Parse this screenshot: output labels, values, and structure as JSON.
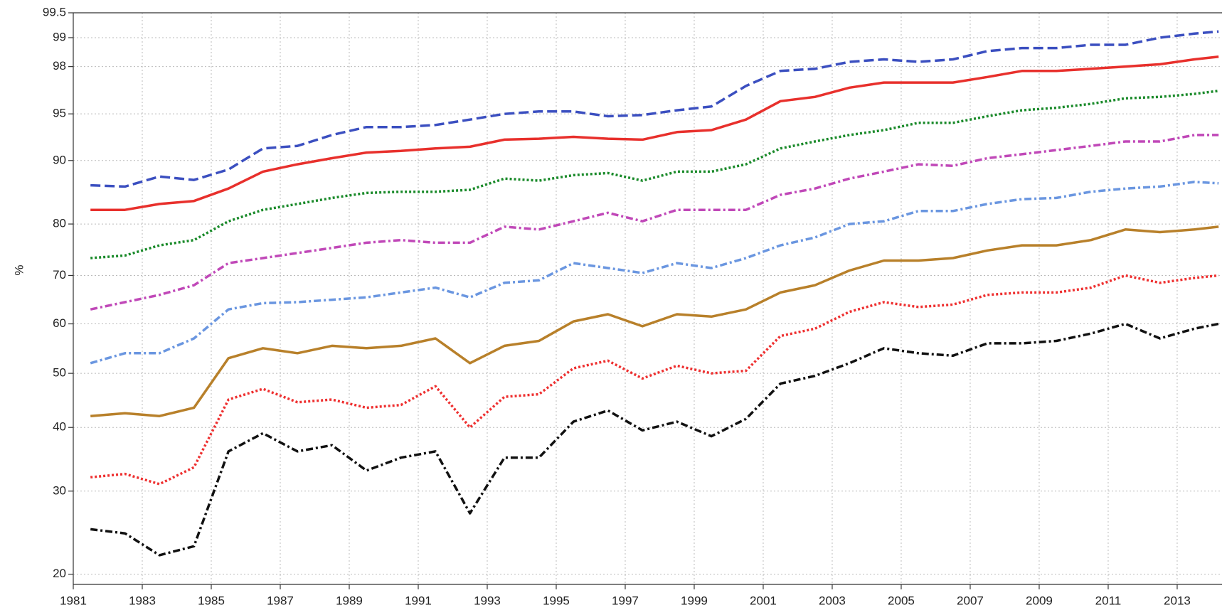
{
  "chart_data": {
    "type": "line",
    "y_label": "%",
    "yscale": "cloglog",
    "grid": true,
    "x": [
      1981.5,
      1982.5,
      1983.5,
      1984.5,
      1985.5,
      1986.5,
      1987.5,
      1988.5,
      1989.5,
      1990.5,
      1991.5,
      1992.5,
      1993.5,
      1994.5,
      1995.5,
      1996.5,
      1997.5,
      1998.5,
      1999.5,
      2000.5,
      2001.5,
      2002.5,
      2003.5,
      2004.5,
      2005.5,
      2006.5,
      2007.5,
      2008.5,
      2009.5,
      2010.5,
      2011.5,
      2012.5,
      2013.5,
      2014.2
    ],
    "xlim": [
      1981,
      2014.3
    ],
    "xticks": [
      1981,
      1983,
      1985,
      1987,
      1989,
      1991,
      1993,
      1995,
      1997,
      1999,
      2001,
      2003,
      2005,
      2007,
      2009,
      2011,
      2013
    ],
    "ylim": [
      19,
      99.5
    ],
    "yticks": [
      20,
      30,
      40,
      50,
      60,
      70,
      80,
      90,
      95,
      98,
      99,
      99.5
    ],
    "series": [
      {
        "color": "#3b4fc0",
        "dash": "dashed",
        "values": [
          86.5,
          86.3,
          87.8,
          87.3,
          88.8,
          91.5,
          91.8,
          93.0,
          93.8,
          93.8,
          94.0,
          94.5,
          95.0,
          95.2,
          95.2,
          94.8,
          94.9,
          95.3,
          95.6,
          97.0,
          97.8,
          97.9,
          98.2,
          98.3,
          98.2,
          98.3,
          98.6,
          98.7,
          98.7,
          98.8,
          98.8,
          99.0,
          99.1,
          99.15
        ]
      },
      {
        "color": "#e8302c",
        "dash": "solid",
        "values": [
          82.5,
          82.5,
          83.5,
          84.0,
          86.0,
          88.5,
          89.5,
          90.3,
          91.0,
          91.2,
          91.5,
          91.7,
          92.5,
          92.6,
          92.8,
          92.6,
          92.5,
          93.3,
          93.5,
          94.5,
          96.0,
          96.3,
          96.9,
          97.2,
          97.2,
          97.2,
          97.5,
          97.8,
          97.8,
          97.9,
          98.0,
          98.1,
          98.3,
          98.4
        ]
      },
      {
        "color": "#1a8a2a",
        "dash": "dotted",
        "values": [
          73.5,
          74.0,
          76.0,
          77.0,
          80.5,
          82.5,
          83.5,
          84.5,
          85.3,
          85.5,
          85.5,
          85.8,
          87.5,
          87.2,
          88.0,
          88.3,
          87.2,
          88.5,
          88.5,
          89.5,
          91.5,
          92.3,
          93.0,
          93.5,
          94.2,
          94.2,
          94.8,
          95.3,
          95.5,
          95.8,
          96.2,
          96.3,
          96.5,
          96.7
        ]
      },
      {
        "color": "#c048b8",
        "dash": "dashdot",
        "values": [
          63,
          64.5,
          66,
          68,
          72.5,
          73.5,
          74.5,
          75.5,
          76.5,
          77,
          76.5,
          76.5,
          79.5,
          79,
          80.5,
          82,
          80.5,
          82.5,
          82.5,
          82.5,
          85,
          86,
          87.5,
          88.5,
          89.5,
          89.3,
          90.3,
          90.8,
          91.3,
          91.8,
          92.3,
          92.3,
          93,
          93
        ]
      },
      {
        "color": "#6a96e0",
        "dash": "dashdot",
        "values": [
          52,
          54,
          54,
          57,
          63,
          64.3,
          64.5,
          65,
          65.5,
          66.5,
          67.5,
          65.5,
          68.5,
          69,
          72.5,
          71.5,
          70.5,
          72.5,
          71.5,
          73.5,
          76,
          77.5,
          80,
          80.5,
          82.3,
          82.3,
          83.5,
          84.3,
          84.5,
          85.5,
          86,
          86.3,
          87,
          86.8
        ]
      },
      {
        "color": "#b8802a",
        "dash": "solid",
        "values": [
          42,
          42.5,
          42,
          43.5,
          53,
          55,
          54,
          55.5,
          55,
          55.5,
          57,
          52,
          55.5,
          56.5,
          60.5,
          62,
          59.5,
          62,
          61.5,
          63,
          66.5,
          68,
          71,
          73,
          73,
          73.5,
          75,
          76,
          76,
          77,
          79,
          78.5,
          79,
          79.5
        ]
      },
      {
        "color": "#ee3030",
        "dash": "dotted",
        "values": [
          32,
          32.5,
          31,
          33.5,
          45,
          47,
          44.5,
          45,
          43.5,
          44,
          47.5,
          40,
          45.5,
          46,
          51,
          52.5,
          49,
          51.5,
          50,
          50.5,
          57.5,
          59,
          62.5,
          64.5,
          63.5,
          64,
          66,
          66.5,
          66.5,
          67.5,
          70,
          68.5,
          69.5,
          70
        ]
      },
      {
        "color": "#111111",
        "dash": "dashdot",
        "values": [
          25,
          24.5,
          22,
          23,
          36,
          39,
          36,
          37,
          33,
          35,
          36,
          27,
          35,
          35,
          41,
          43,
          39.5,
          41,
          38.5,
          41.5,
          48,
          49.5,
          52,
          55,
          54,
          53.5,
          56,
          56,
          56.5,
          58,
          60,
          57,
          59,
          60
        ]
      }
    ]
  }
}
